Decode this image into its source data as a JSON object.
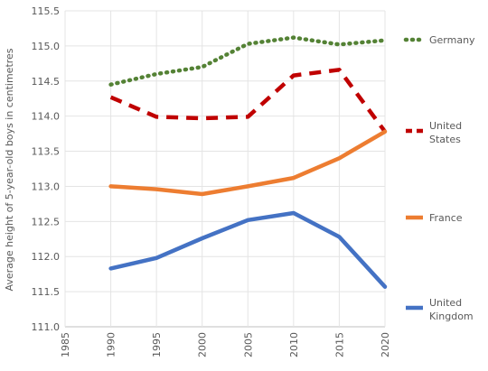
{
  "chart_data": {
    "type": "line",
    "title": "",
    "ylabel": "Average height of 5-year-old boys in centimetres",
    "xlabel": "",
    "x": [
      1985,
      1990,
      1995,
      2000,
      2005,
      2010,
      2015,
      2020
    ],
    "x_tick_labels": [
      "1985",
      "1990",
      "1995",
      "2000",
      "2005",
      "2010",
      "2015",
      "2020"
    ],
    "y_tick_labels": [
      "111.0",
      "111.5",
      "112.0",
      "112.5",
      "113.0",
      "113.5",
      "114.0",
      "114.5",
      "115.0",
      "115.5"
    ],
    "xlim": [
      1985,
      2020
    ],
    "ylim": [
      111.0,
      115.5
    ],
    "grid": "horizontal and vertical",
    "legend_position": "right, label beside each series",
    "series": [
      {
        "name": "Germany",
        "legend_lines": [
          "Germany"
        ],
        "color": "#548235",
        "style": "dotted",
        "x": [
          1990,
          1995,
          2000,
          2005,
          2010,
          2015,
          2020
        ],
        "values": [
          114.45,
          114.6,
          114.7,
          115.03,
          115.12,
          115.02,
          115.08
        ]
      },
      {
        "name": "United States",
        "legend_lines": [
          "United",
          "States"
        ],
        "color": "#C00000",
        "style": "dashed",
        "x": [
          1990,
          1995,
          2000,
          2005,
          2010,
          2015,
          2020
        ],
        "values": [
          114.27,
          113.99,
          113.97,
          113.99,
          114.58,
          114.66,
          113.78
        ]
      },
      {
        "name": "France",
        "legend_lines": [
          "France"
        ],
        "color": "#ED7D31",
        "style": "solid",
        "x": [
          1990,
          1995,
          2000,
          2005,
          2010,
          2015,
          2020
        ],
        "values": [
          113.0,
          112.96,
          112.89,
          113.0,
          113.12,
          113.4,
          113.78
        ]
      },
      {
        "name": "United Kingdom",
        "legend_lines": [
          "United",
          "Kingdom"
        ],
        "color": "#4472C4",
        "style": "solid",
        "x": [
          1990,
          1995,
          2000,
          2005,
          2010,
          2015,
          2020
        ],
        "values": [
          111.83,
          111.98,
          112.26,
          112.52,
          112.62,
          112.28,
          111.57
        ]
      }
    ]
  }
}
